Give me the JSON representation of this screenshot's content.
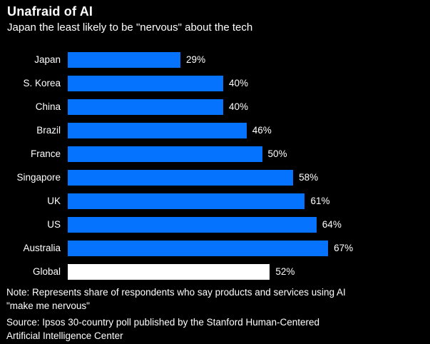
{
  "header": {
    "title": "Unafraid of AI",
    "subtitle": "Japan the least likely to be \"nervous\" about the tech"
  },
  "chart_data": {
    "type": "bar",
    "orientation": "horizontal",
    "title": "Unafraid of AI",
    "subtitle": "Japan the least likely to be \"nervous\" about the tech",
    "categories": [
      "Japan",
      "S. Korea",
      "China",
      "Brazil",
      "France",
      "Singapore",
      "UK",
      "US",
      "Australia",
      "Global"
    ],
    "values": [
      29,
      40,
      40,
      46,
      50,
      58,
      61,
      64,
      67,
      52
    ],
    "unit": "%",
    "xlim": [
      0,
      100
    ],
    "grid": false,
    "legend": false,
    "bar_color_default": "#0673ff",
    "highlight_category": "Global",
    "highlight_color": "#ffffff"
  },
  "footer": {
    "note": "Note: Represents share of respondents who say products and services using AI\n\"make me nervous\"",
    "source": "Source: Ipsos 30-country poll published by the Stanford Human-Centered\nArtificial Intelligence Center"
  },
  "colors": {
    "background": "#000000",
    "text": "#ffffff",
    "bar": "#0673ff",
    "global_bar": "#ffffff"
  }
}
